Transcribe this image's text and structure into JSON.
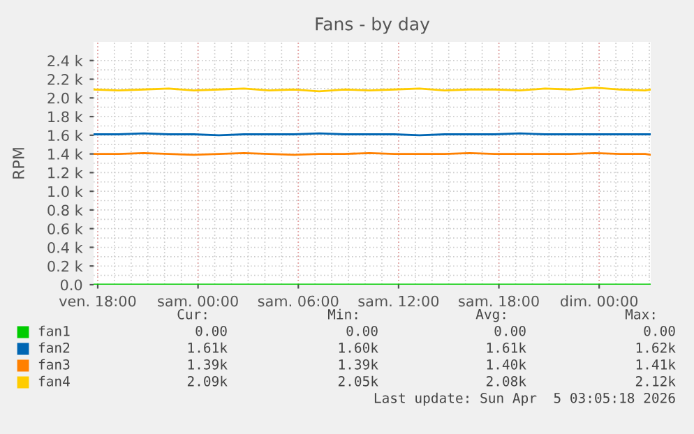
{
  "chart_data": {
    "type": "line",
    "title": "Fans - by day",
    "ylabel": "RPM",
    "x": [
      "2026-04-03T17:45",
      "2026-04-03T19:15",
      "2026-04-03T20:45",
      "2026-04-03T22:15",
      "2026-04-03T23:45",
      "2026-04-04T01:15",
      "2026-04-04T02:45",
      "2026-04-04T04:15",
      "2026-04-04T05:45",
      "2026-04-04T07:15",
      "2026-04-04T08:45",
      "2026-04-04T10:15",
      "2026-04-04T11:45",
      "2026-04-04T13:15",
      "2026-04-04T14:45",
      "2026-04-04T16:15",
      "2026-04-04T17:45",
      "2026-04-04T19:15",
      "2026-04-04T20:45",
      "2026-04-04T22:15",
      "2026-04-04T23:45",
      "2026-04-05T01:15",
      "2026-04-05T02:45",
      "2026-04-05T03:05"
    ],
    "series": [
      {
        "name": "fan1",
        "color": "#00cc00",
        "values": [
          0,
          0,
          0,
          0,
          0,
          0,
          0,
          0,
          0,
          0,
          0,
          0,
          0,
          0,
          0,
          0,
          0,
          0,
          0,
          0,
          0,
          0,
          0,
          0
        ]
      },
      {
        "name": "fan2",
        "color": "#0066b3",
        "values": [
          1610,
          1610,
          1620,
          1610,
          1610,
          1600,
          1610,
          1610,
          1610,
          1620,
          1610,
          1610,
          1610,
          1600,
          1610,
          1610,
          1610,
          1620,
          1610,
          1610,
          1610,
          1610,
          1610,
          1610
        ]
      },
      {
        "name": "fan3",
        "color": "#ff8000",
        "values": [
          1400,
          1400,
          1410,
          1400,
          1390,
          1400,
          1410,
          1400,
          1390,
          1400,
          1400,
          1410,
          1400,
          1400,
          1400,
          1410,
          1400,
          1400,
          1400,
          1400,
          1410,
          1400,
          1400,
          1390
        ]
      },
      {
        "name": "fan4",
        "color": "#ffcc00",
        "values": [
          2090,
          2080,
          2090,
          2100,
          2080,
          2090,
          2100,
          2080,
          2090,
          2070,
          2090,
          2080,
          2090,
          2100,
          2080,
          2090,
          2090,
          2080,
          2100,
          2090,
          2110,
          2090,
          2080,
          2090
        ]
      }
    ],
    "xlim": [
      "2026-04-03T17:45",
      "2026-04-05T03:05"
    ],
    "xticks": [
      {
        "value": "2026-04-03T18:00",
        "label": "ven. 18:00"
      },
      {
        "value": "2026-04-04T00:00",
        "label": "sam. 00:00"
      },
      {
        "value": "2026-04-04T06:00",
        "label": "sam. 06:00"
      },
      {
        "value": "2026-04-04T12:00",
        "label": "sam. 12:00"
      },
      {
        "value": "2026-04-04T18:00",
        "label": "sam. 18:00"
      },
      {
        "value": "2026-04-05T00:00",
        "label": "dim. 00:00"
      }
    ],
    "ylim": [
      0,
      2600
    ],
    "yticks": [
      {
        "value": 0,
        "label": "0.0"
      },
      {
        "value": 200,
        "label": "0.2 k"
      },
      {
        "value": 400,
        "label": "0.4 k"
      },
      {
        "value": 600,
        "label": "0.6 k"
      },
      {
        "value": 800,
        "label": "0.8 k"
      },
      {
        "value": 1000,
        "label": "1.0 k"
      },
      {
        "value": 1200,
        "label": "1.2 k"
      },
      {
        "value": 1400,
        "label": "1.4 k"
      },
      {
        "value": 1600,
        "label": "1.6 k"
      },
      {
        "value": 1800,
        "label": "1.8 k"
      },
      {
        "value": 2000,
        "label": "2.0 k"
      },
      {
        "value": 2200,
        "label": "2.2 k"
      },
      {
        "value": 2400,
        "label": "2.4 k"
      }
    ],
    "grid": true,
    "legend": "bottom",
    "annotations": [
      "Cur:",
      "Min:",
      "Avg:",
      "Max:",
      "0.00",
      "0.00",
      "0.00",
      "0.00",
      "1.61k",
      "1.60k",
      "1.61k",
      "1.62k",
      "1.39k",
      "1.39k",
      "1.40k",
      "1.41k",
      "2.09k",
      "2.05k",
      "2.08k",
      "2.12k",
      "Last update: Sun Apr  5 03:05:18 2026"
    ]
  }
}
